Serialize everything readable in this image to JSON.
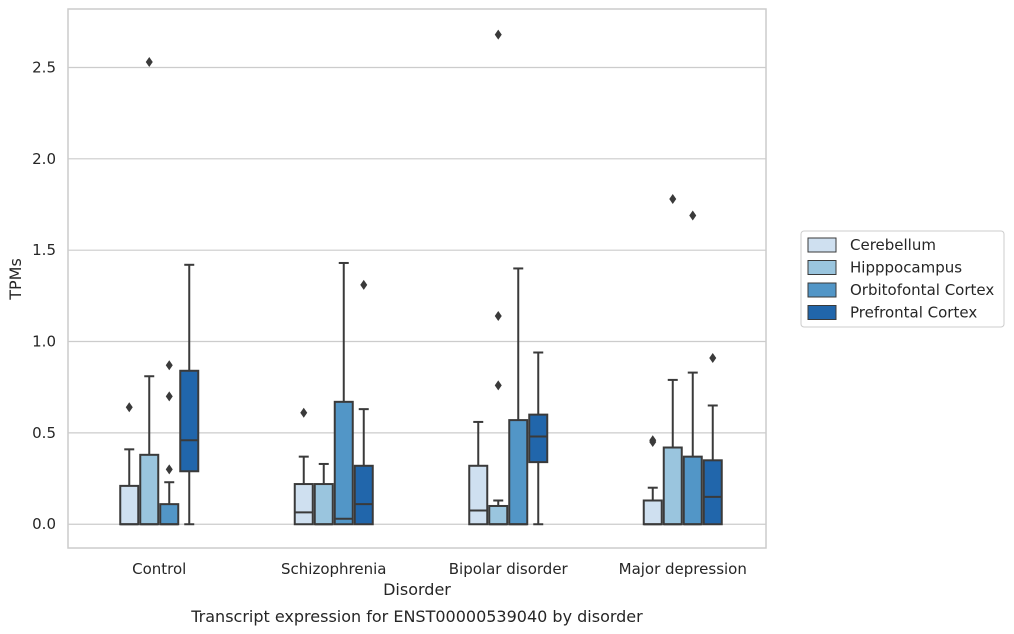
{
  "chart_data": {
    "type": "box",
    "xlabel": "Disorder",
    "ylabel": "TPMs",
    "caption": "Transcript expression for ENST00000539040 by disorder",
    "categories": [
      "Control",
      "Schizophrenia",
      "Bipolar disorder",
      "Major depression"
    ],
    "ylim": [
      -0.13,
      2.82
    ],
    "yticks": [
      0.0,
      0.5,
      1.0,
      1.5,
      2.0,
      2.5
    ],
    "ytick_labels": [
      "0.0",
      "0.5",
      "1.0",
      "1.5",
      "2.0",
      "2.5"
    ],
    "grid": true,
    "legend_position": "right",
    "series": [
      {
        "name": "Cerebellum",
        "color": "#cfe0f0",
        "boxes": [
          {
            "whislo": 0.0,
            "q1": 0.0,
            "med": 0.0,
            "q3": 0.21,
            "whishi": 0.41,
            "fliers": [
              0.64
            ]
          },
          {
            "whislo": 0.0,
            "q1": 0.0,
            "med": 0.065,
            "q3": 0.22,
            "whishi": 0.37,
            "fliers": [
              0.61
            ]
          },
          {
            "whislo": 0.0,
            "q1": 0.0,
            "med": 0.075,
            "q3": 0.32,
            "whishi": 0.56,
            "fliers": []
          },
          {
            "whislo": 0.0,
            "q1": 0.0,
            "med": 0.0,
            "q3": 0.13,
            "whishi": 0.2,
            "fliers": [
              0.45,
              0.46
            ]
          }
        ]
      },
      {
        "name": "Hipppocampus",
        "color": "#9ac5de",
        "boxes": [
          {
            "whislo": 0.0,
            "q1": 0.0,
            "med": 0.0,
            "q3": 0.38,
            "whishi": 0.81,
            "fliers": [
              2.53
            ]
          },
          {
            "whislo": 0.0,
            "q1": 0.0,
            "med": 0.0,
            "q3": 0.22,
            "whishi": 0.33,
            "fliers": []
          },
          {
            "whislo": 0.0,
            "q1": 0.0,
            "med": 0.0,
            "q3": 0.1,
            "whishi": 0.13,
            "fliers": [
              0.76,
              1.14,
              2.68
            ]
          },
          {
            "whislo": 0.0,
            "q1": 0.0,
            "med": 0.0,
            "q3": 0.42,
            "whishi": 0.79,
            "fliers": [
              1.78
            ]
          }
        ]
      },
      {
        "name": "Orbitofontal Cortex",
        "color": "#5296c7",
        "boxes": [
          {
            "whislo": 0.0,
            "q1": 0.0,
            "med": 0.0,
            "q3": 0.11,
            "whishi": 0.23,
            "fliers": [
              0.3,
              0.7,
              0.87
            ]
          },
          {
            "whislo": 0.0,
            "q1": 0.0,
            "med": 0.03,
            "q3": 0.67,
            "whishi": 1.43,
            "fliers": []
          },
          {
            "whislo": 0.0,
            "q1": 0.0,
            "med": 0.0,
            "q3": 0.57,
            "whishi": 1.4,
            "fliers": []
          },
          {
            "whislo": 0.0,
            "q1": 0.0,
            "med": 0.0,
            "q3": 0.37,
            "whishi": 0.83,
            "fliers": [
              1.69
            ]
          }
        ]
      },
      {
        "name": "Prefrontal Cortex",
        "color": "#2166ab",
        "boxes": [
          {
            "whislo": 0.0,
            "q1": 0.29,
            "med": 0.46,
            "q3": 0.84,
            "whishi": 1.42,
            "fliers": []
          },
          {
            "whislo": 0.0,
            "q1": 0.0,
            "med": 0.11,
            "q3": 0.32,
            "whishi": 0.63,
            "fliers": [
              1.31
            ]
          },
          {
            "whislo": 0.0,
            "q1": 0.34,
            "med": 0.48,
            "q3": 0.6,
            "whishi": 0.94,
            "fliers": []
          },
          {
            "whislo": 0.0,
            "q1": 0.0,
            "med": 0.15,
            "q3": 0.35,
            "whishi": 0.65,
            "fliers": [
              0.91
            ]
          }
        ]
      }
    ]
  }
}
